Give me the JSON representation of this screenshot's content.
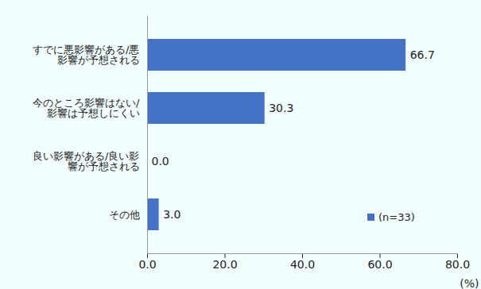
{
  "chart_data": {
    "type": "bar",
    "orientation": "horizontal",
    "categories": [
      "すでに悪影響がある/悪影響が予想される",
      "今のところ影響はない/影響は予想しにくい",
      "良い影響がある/良い影響が予想される",
      "その他"
    ],
    "series": [
      {
        "name": "(n=33)",
        "color": "#4472c4",
        "values": [
          66.7,
          30.3,
          0.0,
          3.0
        ],
        "value_labels": [
          "66.7",
          "30.3",
          "0.0",
          "3.0"
        ]
      }
    ],
    "xlabel": "(%)",
    "xlim": [
      0,
      80
    ],
    "xticks": [
      {
        "value": 0,
        "label": "0.0"
      },
      {
        "value": 20,
        "label": "20.0"
      },
      {
        "value": 40,
        "label": "40.0"
      },
      {
        "value": 60,
        "label": "60.0"
      },
      {
        "value": 80,
        "label": "80.0"
      }
    ],
    "grid": false,
    "data_labels": true,
    "legend": "bottom-right"
  }
}
